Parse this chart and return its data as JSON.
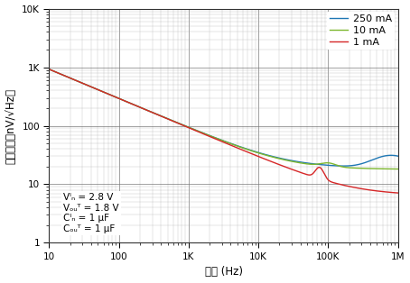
{
  "xlabel": "頻率 (Hz)",
  "ylabel": "输出噪声（nV/√Hz）",
  "xlim": [
    10,
    1000000
  ],
  "ylim": [
    1,
    10000
  ],
  "legend_labels": [
    "1 mA",
    "10 mA",
    "250 mA"
  ],
  "legend_colors": [
    "#d62728",
    "#7db72f",
    "#1f77b4"
  ],
  "background_color": "#ffffff",
  "grid_major_color": "#777777",
  "grid_minor_color": "#aaaaaa",
  "xtick_labels": [
    "10",
    "100",
    "1K",
    "10K",
    "100K",
    "1M"
  ],
  "xtick_vals": [
    10,
    100,
    1000,
    10000,
    100000,
    1000000
  ],
  "ytick_labels": [
    "1",
    "10",
    "100",
    "1K",
    "10K"
  ],
  "ytick_vals": [
    1,
    10,
    100,
    1000,
    10000
  ]
}
